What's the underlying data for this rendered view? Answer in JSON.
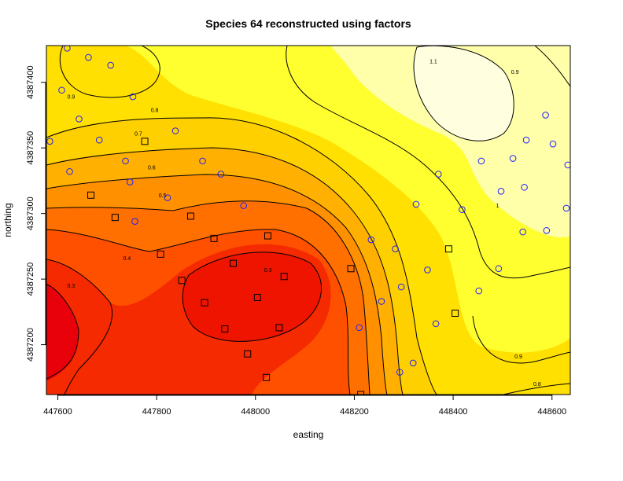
{
  "chart_data": {
    "type": "heatmap",
    "title": "Species 64 reconstructed using factors",
    "xlabel": "easting",
    "ylabel": "northing",
    "xlim": [
      447577,
      448637
    ],
    "ylim": [
      4387162,
      4387428
    ],
    "x_ticks": [
      447600,
      447800,
      448000,
      448200,
      448400,
      448600
    ],
    "x_tick_labels": [
      "447600",
      "447800",
      "448000",
      "448200",
      "448400",
      "448600"
    ],
    "y_ticks": [
      4387200,
      4387250,
      4387300,
      4387350,
      4387400
    ],
    "y_tick_labels": [
      "4387200",
      "4387250",
      "4387300",
      "4387350",
      "4387400"
    ],
    "color_scale": {
      "low": "#e8000b",
      "mid_low": "#ff6a00",
      "mid": "#ffd200",
      "mid_high": "#ffff33",
      "high": "#ffffdd"
    },
    "contour_levels": [
      0.3,
      0.4,
      0.5,
      0.6,
      0.7,
      0.8,
      0.9,
      1.0,
      1.1
    ],
    "contour_labels": [
      {
        "x": 447627,
        "y": 4387389,
        "text": "0.9"
      },
      {
        "x": 447796,
        "y": 4387379,
        "text": "0.8"
      },
      {
        "x": 447763,
        "y": 4387361,
        "text": "0.7"
      },
      {
        "x": 447790,
        "y": 4387335,
        "text": "0.6"
      },
      {
        "x": 447812,
        "y": 4387314,
        "text": "0.5"
      },
      {
        "x": 447740,
        "y": 4387266,
        "text": "0.4"
      },
      {
        "x": 448025,
        "y": 4387257,
        "text": "0.3"
      },
      {
        "x": 447627,
        "y": 4387245,
        "text": "0.3"
      },
      {
        "x": 448360,
        "y": 4387416,
        "text": "1.1"
      },
      {
        "x": 448525,
        "y": 4387408,
        "text": "0.9"
      },
      {
        "x": 448532,
        "y": 4387191,
        "text": "0.9"
      },
      {
        "x": 448570,
        "y": 4387170,
        "text": "0.8"
      },
      {
        "x": 448490,
        "y": 4387306,
        "text": "1"
      }
    ],
    "circle_points": [
      {
        "x": 447619,
        "y": 4387426
      },
      {
        "x": 447662,
        "y": 4387419
      },
      {
        "x": 447707,
        "y": 4387413
      },
      {
        "x": 447752,
        "y": 4387389
      },
      {
        "x": 447608,
        "y": 4387394
      },
      {
        "x": 447643,
        "y": 4387372
      },
      {
        "x": 447684,
        "y": 4387356
      },
      {
        "x": 447737,
        "y": 4387340
      },
      {
        "x": 447838,
        "y": 4387363
      },
      {
        "x": 447893,
        "y": 4387340
      },
      {
        "x": 447584,
        "y": 4387355
      },
      {
        "x": 447624,
        "y": 4387332
      },
      {
        "x": 447746,
        "y": 4387324
      },
      {
        "x": 447822,
        "y": 4387312
      },
      {
        "x": 447930,
        "y": 4387330
      },
      {
        "x": 447976,
        "y": 4387306
      },
      {
        "x": 447756,
        "y": 4387294
      },
      {
        "x": 448234,
        "y": 4387280
      },
      {
        "x": 448283,
        "y": 4387273
      },
      {
        "x": 448325,
        "y": 4387307
      },
      {
        "x": 448370,
        "y": 4387330
      },
      {
        "x": 448348,
        "y": 4387257
      },
      {
        "x": 448295,
        "y": 4387244
      },
      {
        "x": 448255,
        "y": 4387233
      },
      {
        "x": 448210,
        "y": 4387213
      },
      {
        "x": 448365,
        "y": 4387216
      },
      {
        "x": 448319,
        "y": 4387186
      },
      {
        "x": 448292,
        "y": 4387179
      },
      {
        "x": 448418,
        "y": 4387303
      },
      {
        "x": 448457,
        "y": 4387340
      },
      {
        "x": 448497,
        "y": 4387317
      },
      {
        "x": 448521,
        "y": 4387342
      },
      {
        "x": 448541,
        "y": 4387286
      },
      {
        "x": 448492,
        "y": 4387258
      },
      {
        "x": 448452,
        "y": 4387241
      },
      {
        "x": 448548,
        "y": 4387356
      },
      {
        "x": 448602,
        "y": 4387353
      },
      {
        "x": 448587,
        "y": 4387375
      },
      {
        "x": 448632,
        "y": 4387337
      },
      {
        "x": 448544,
        "y": 4387320
      },
      {
        "x": 448589,
        "y": 4387287
      },
      {
        "x": 448629,
        "y": 4387304
      }
    ],
    "square_points": [
      {
        "x": 447776,
        "y": 4387355
      },
      {
        "x": 447667,
        "y": 4387314
      },
      {
        "x": 447716,
        "y": 4387297
      },
      {
        "x": 447869,
        "y": 4387298
      },
      {
        "x": 447916,
        "y": 4387281
      },
      {
        "x": 448025,
        "y": 4387283
      },
      {
        "x": 447808,
        "y": 4387269
      },
      {
        "x": 447955,
        "y": 4387262
      },
      {
        "x": 447851,
        "y": 4387249
      },
      {
        "x": 448058,
        "y": 4387252
      },
      {
        "x": 448193,
        "y": 4387258
      },
      {
        "x": 448391,
        "y": 4387273
      },
      {
        "x": 447897,
        "y": 4387232
      },
      {
        "x": 448004,
        "y": 4387236
      },
      {
        "x": 448404,
        "y": 4387224
      },
      {
        "x": 447938,
        "y": 4387212
      },
      {
        "x": 448048,
        "y": 4387213
      },
      {
        "x": 447984,
        "y": 4387193
      },
      {
        "x": 448022,
        "y": 4387175
      },
      {
        "x": 448213,
        "y": 4387162
      }
    ]
  }
}
